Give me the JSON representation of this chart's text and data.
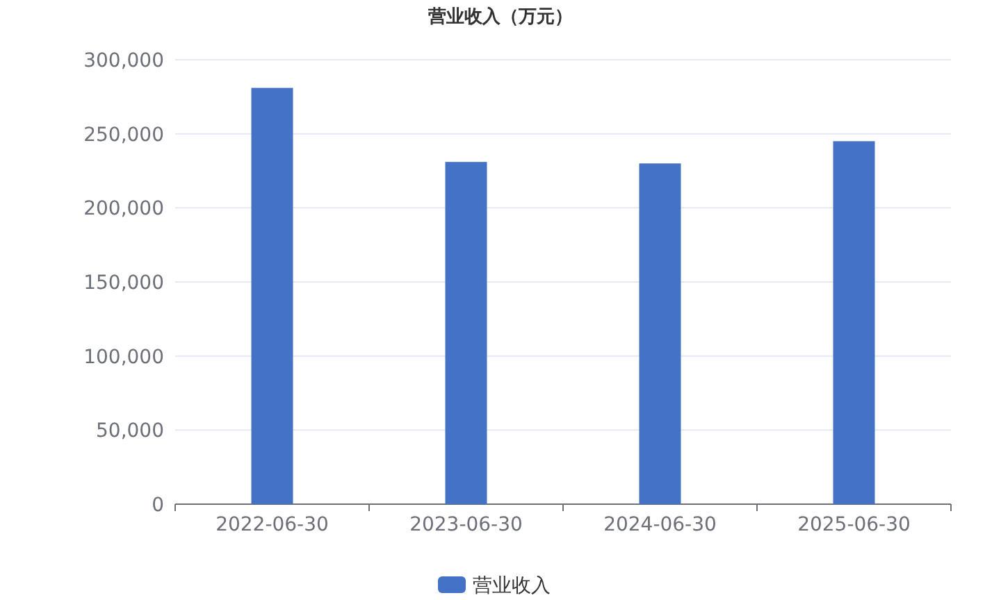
{
  "chart_data": {
    "type": "bar",
    "title": "营业收入（万元）",
    "categories": [
      "2022-06-30",
      "2023-06-30",
      "2024-06-30",
      "2025-06-30"
    ],
    "series": [
      {
        "name": "营业收入",
        "color": "#4472c4",
        "values": [
          281000,
          231000,
          230000,
          245000
        ]
      }
    ],
    "ylim": [
      0,
      300000
    ],
    "yticks": [
      {
        "value": 0,
        "label": "0"
      },
      {
        "value": 50000,
        "label": "50,000"
      },
      {
        "value": 100000,
        "label": "100,000"
      },
      {
        "value": 150000,
        "label": "150,000"
      },
      {
        "value": 200000,
        "label": "200,000"
      },
      {
        "value": 250000,
        "label": "250,000"
      },
      {
        "value": 300000,
        "label": "300,000"
      }
    ],
    "grid": "y",
    "legend": "bottom"
  }
}
